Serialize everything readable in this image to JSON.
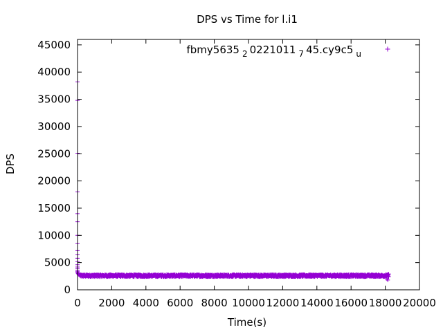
{
  "chart_data": {
    "type": "scatter",
    "title": "DPS vs Time for l.i1",
    "xlabel": "Time(s)",
    "ylabel": "DPS",
    "xlim": [
      0,
      20000
    ],
    "ylim": [
      0,
      46000
    ],
    "xticks": [
      "0",
      "2000",
      "4000",
      "6000",
      "8000",
      "10000",
      "12000",
      "14000",
      "16000",
      "18000",
      "20000"
    ],
    "yticks": [
      "0",
      "5000",
      "10000",
      "15000",
      "20000",
      "25000",
      "30000",
      "35000",
      "40000",
      "45000"
    ],
    "grid": false,
    "legend_position": "top-right",
    "legend_parts": [
      {
        "text": "fbmy5635",
        "sub": false
      },
      {
        "text": "2",
        "sub": true
      },
      {
        "text": "0221011",
        "sub": false
      },
      {
        "text": "7",
        "sub": true
      },
      {
        "text": "45.cy9c5",
        "sub": false
      },
      {
        "text": "u",
        "sub": true
      }
    ],
    "marker": "+",
    "color": "#9400d3",
    "series": [
      {
        "name": "fbmy5635_20221011_745.cy9c5_u",
        "spike_points": [
          [
            0,
            38200
          ],
          [
            0,
            34800
          ],
          [
            0,
            25100
          ],
          [
            0,
            18000
          ],
          [
            0,
            14000
          ],
          [
            0,
            12500
          ],
          [
            0,
            10000
          ],
          [
            0,
            8500
          ],
          [
            0,
            7200
          ],
          [
            0,
            6500
          ],
          [
            0,
            5800
          ],
          [
            0,
            5200
          ],
          [
            0,
            4600
          ],
          [
            0,
            4200
          ],
          [
            0,
            3900
          ],
          [
            0,
            3600
          ],
          [
            0,
            3400
          ],
          [
            0,
            3200
          ],
          [
            20,
            3100
          ],
          [
            30,
            3000
          ],
          [
            50,
            2900
          ],
          [
            80,
            2800
          ],
          [
            120,
            2700
          ]
        ],
        "steady_state": {
          "x_start": 150,
          "x_end": 18200,
          "y_center": 2600,
          "y_spread": 400,
          "interval": 10
        },
        "end_points": [
          [
            18100,
            2000
          ],
          [
            18150,
            1800
          ],
          [
            18200,
            2900
          ]
        ]
      }
    ]
  }
}
